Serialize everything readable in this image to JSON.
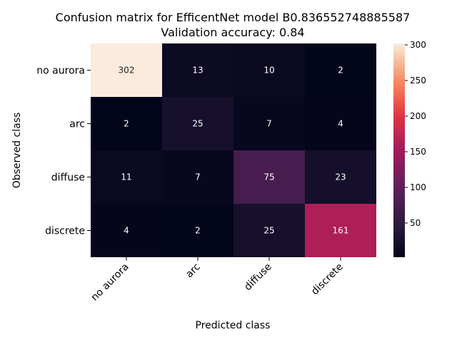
{
  "chart_data": {
    "type": "heatmap",
    "title": "Confusion matrix for EfficentNet model B0.836552748885587",
    "subtitle": "Validation accuracy: 0.84",
    "xlabel": "Predicted class",
    "ylabel": "Observed class",
    "x_categories": [
      "no aurora",
      "arc",
      "diffuse",
      "discrete"
    ],
    "y_categories": [
      "no aurora",
      "arc",
      "diffuse",
      "discrete"
    ],
    "values": [
      [
        302,
        13,
        10,
        2
      ],
      [
        2,
        25,
        7,
        4
      ],
      [
        11,
        7,
        75,
        23
      ],
      [
        4,
        2,
        25,
        161
      ]
    ],
    "colorbar": {
      "min": 2,
      "max": 302,
      "ticks": [
        50,
        100,
        150,
        200,
        250,
        300
      ],
      "colormap": "rocket"
    },
    "grid": false
  }
}
